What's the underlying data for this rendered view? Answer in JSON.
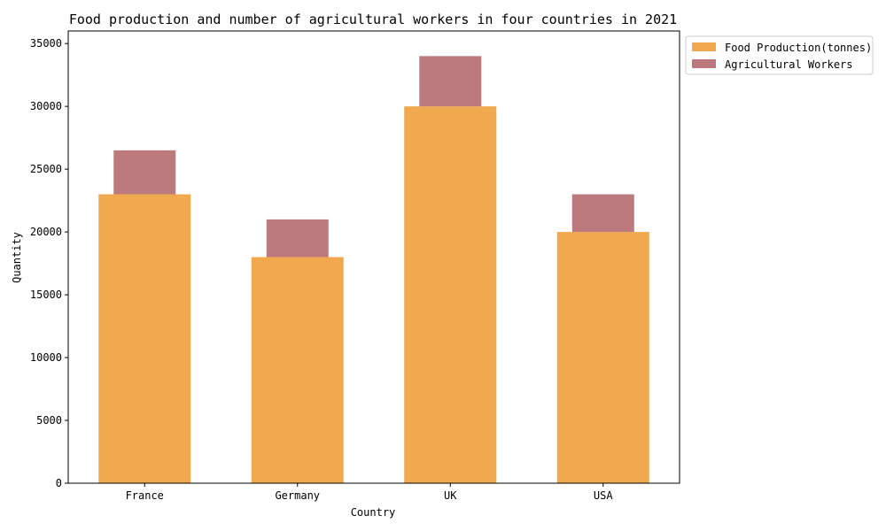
{
  "chart_data": {
    "type": "bar",
    "title": "Food production and number of agricultural workers in four countries in 2021",
    "xlabel": "Country",
    "ylabel": "Quantity",
    "categories": [
      "France",
      "Germany",
      "UK",
      "USA"
    ],
    "series": [
      {
        "name": "Food Production(tonnes)",
        "values": [
          23000,
          18000,
          30000,
          20000
        ],
        "color": "#f0a94f"
      },
      {
        "name": "Agricultural Workers",
        "values": [
          3500,
          3000,
          4000,
          3000
        ],
        "color": "#bc7a7e"
      }
    ],
    "ylim": [
      0,
      36000
    ],
    "yticks": [
      0,
      5000,
      10000,
      15000,
      20000,
      25000,
      30000,
      35000
    ],
    "grid": false,
    "legend_position": "outside-top-right",
    "stacked": true
  }
}
